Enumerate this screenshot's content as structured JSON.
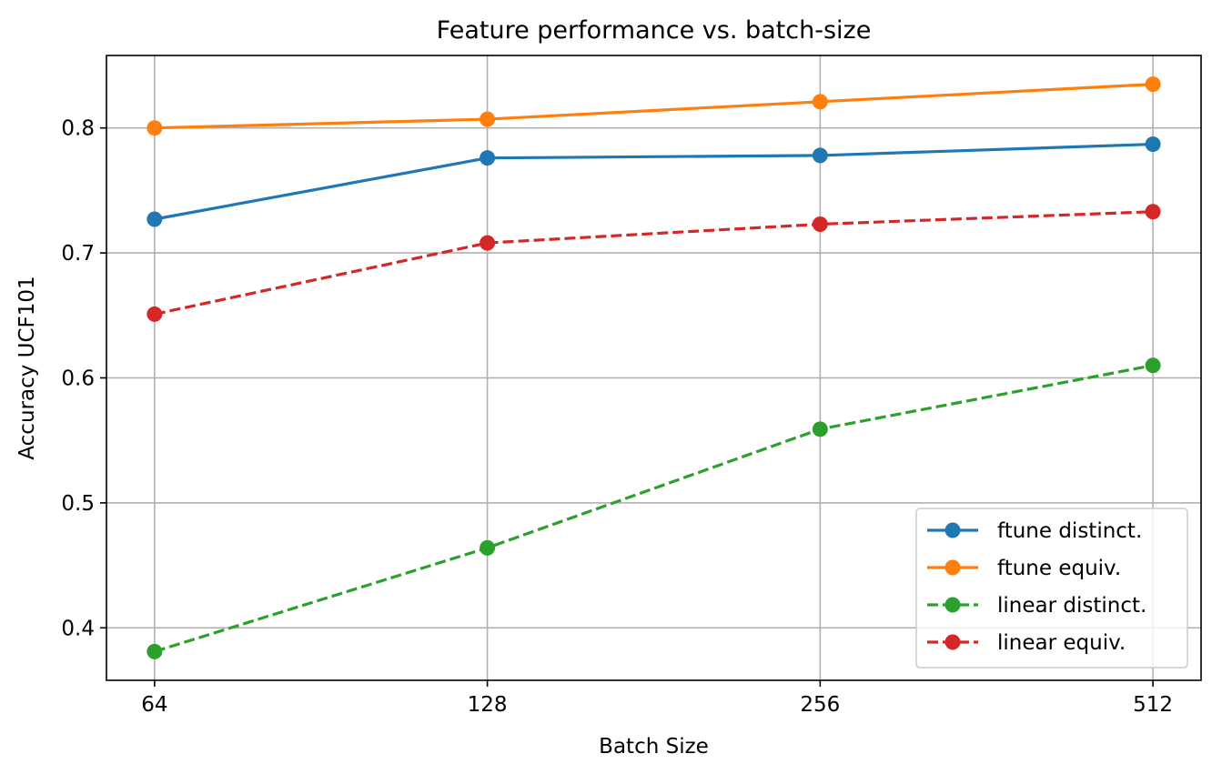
{
  "chart_data": {
    "type": "line",
    "title": "Feature performance vs. batch-size",
    "xlabel": "Batch Size",
    "ylabel": "Accuracy UCF101",
    "x": [
      64,
      128,
      256,
      512
    ],
    "x_tick_labels": [
      "64",
      "128",
      "256",
      "512"
    ],
    "x_scale": "log2",
    "xlim": [
      57.9,
      566.0
    ],
    "ylim": [
      0.358,
      0.858
    ],
    "y_ticks": [
      0.4,
      0.5,
      0.6,
      0.7,
      0.8
    ],
    "y_tick_labels": [
      "0.4",
      "0.5",
      "0.6",
      "0.7",
      "0.8"
    ],
    "grid": true,
    "legend_position": "lower-right",
    "series": [
      {
        "name": "ftune distinct.",
        "values": [
          0.727,
          0.776,
          0.778,
          0.787
        ],
        "color": "#1f77b4",
        "line_style": "solid",
        "marker": "circle"
      },
      {
        "name": "ftune equiv.",
        "values": [
          0.8,
          0.807,
          0.821,
          0.835
        ],
        "color": "#ff7f0e",
        "line_style": "solid",
        "marker": "circle"
      },
      {
        "name": "linear distinct.",
        "values": [
          0.381,
          0.464,
          0.559,
          0.61
        ],
        "color": "#2ca02c",
        "line_style": "dashed",
        "marker": "circle"
      },
      {
        "name": "linear equiv.",
        "values": [
          0.651,
          0.708,
          0.723,
          0.733
        ],
        "color": "#d62728",
        "line_style": "dashed",
        "marker": "circle"
      }
    ]
  }
}
